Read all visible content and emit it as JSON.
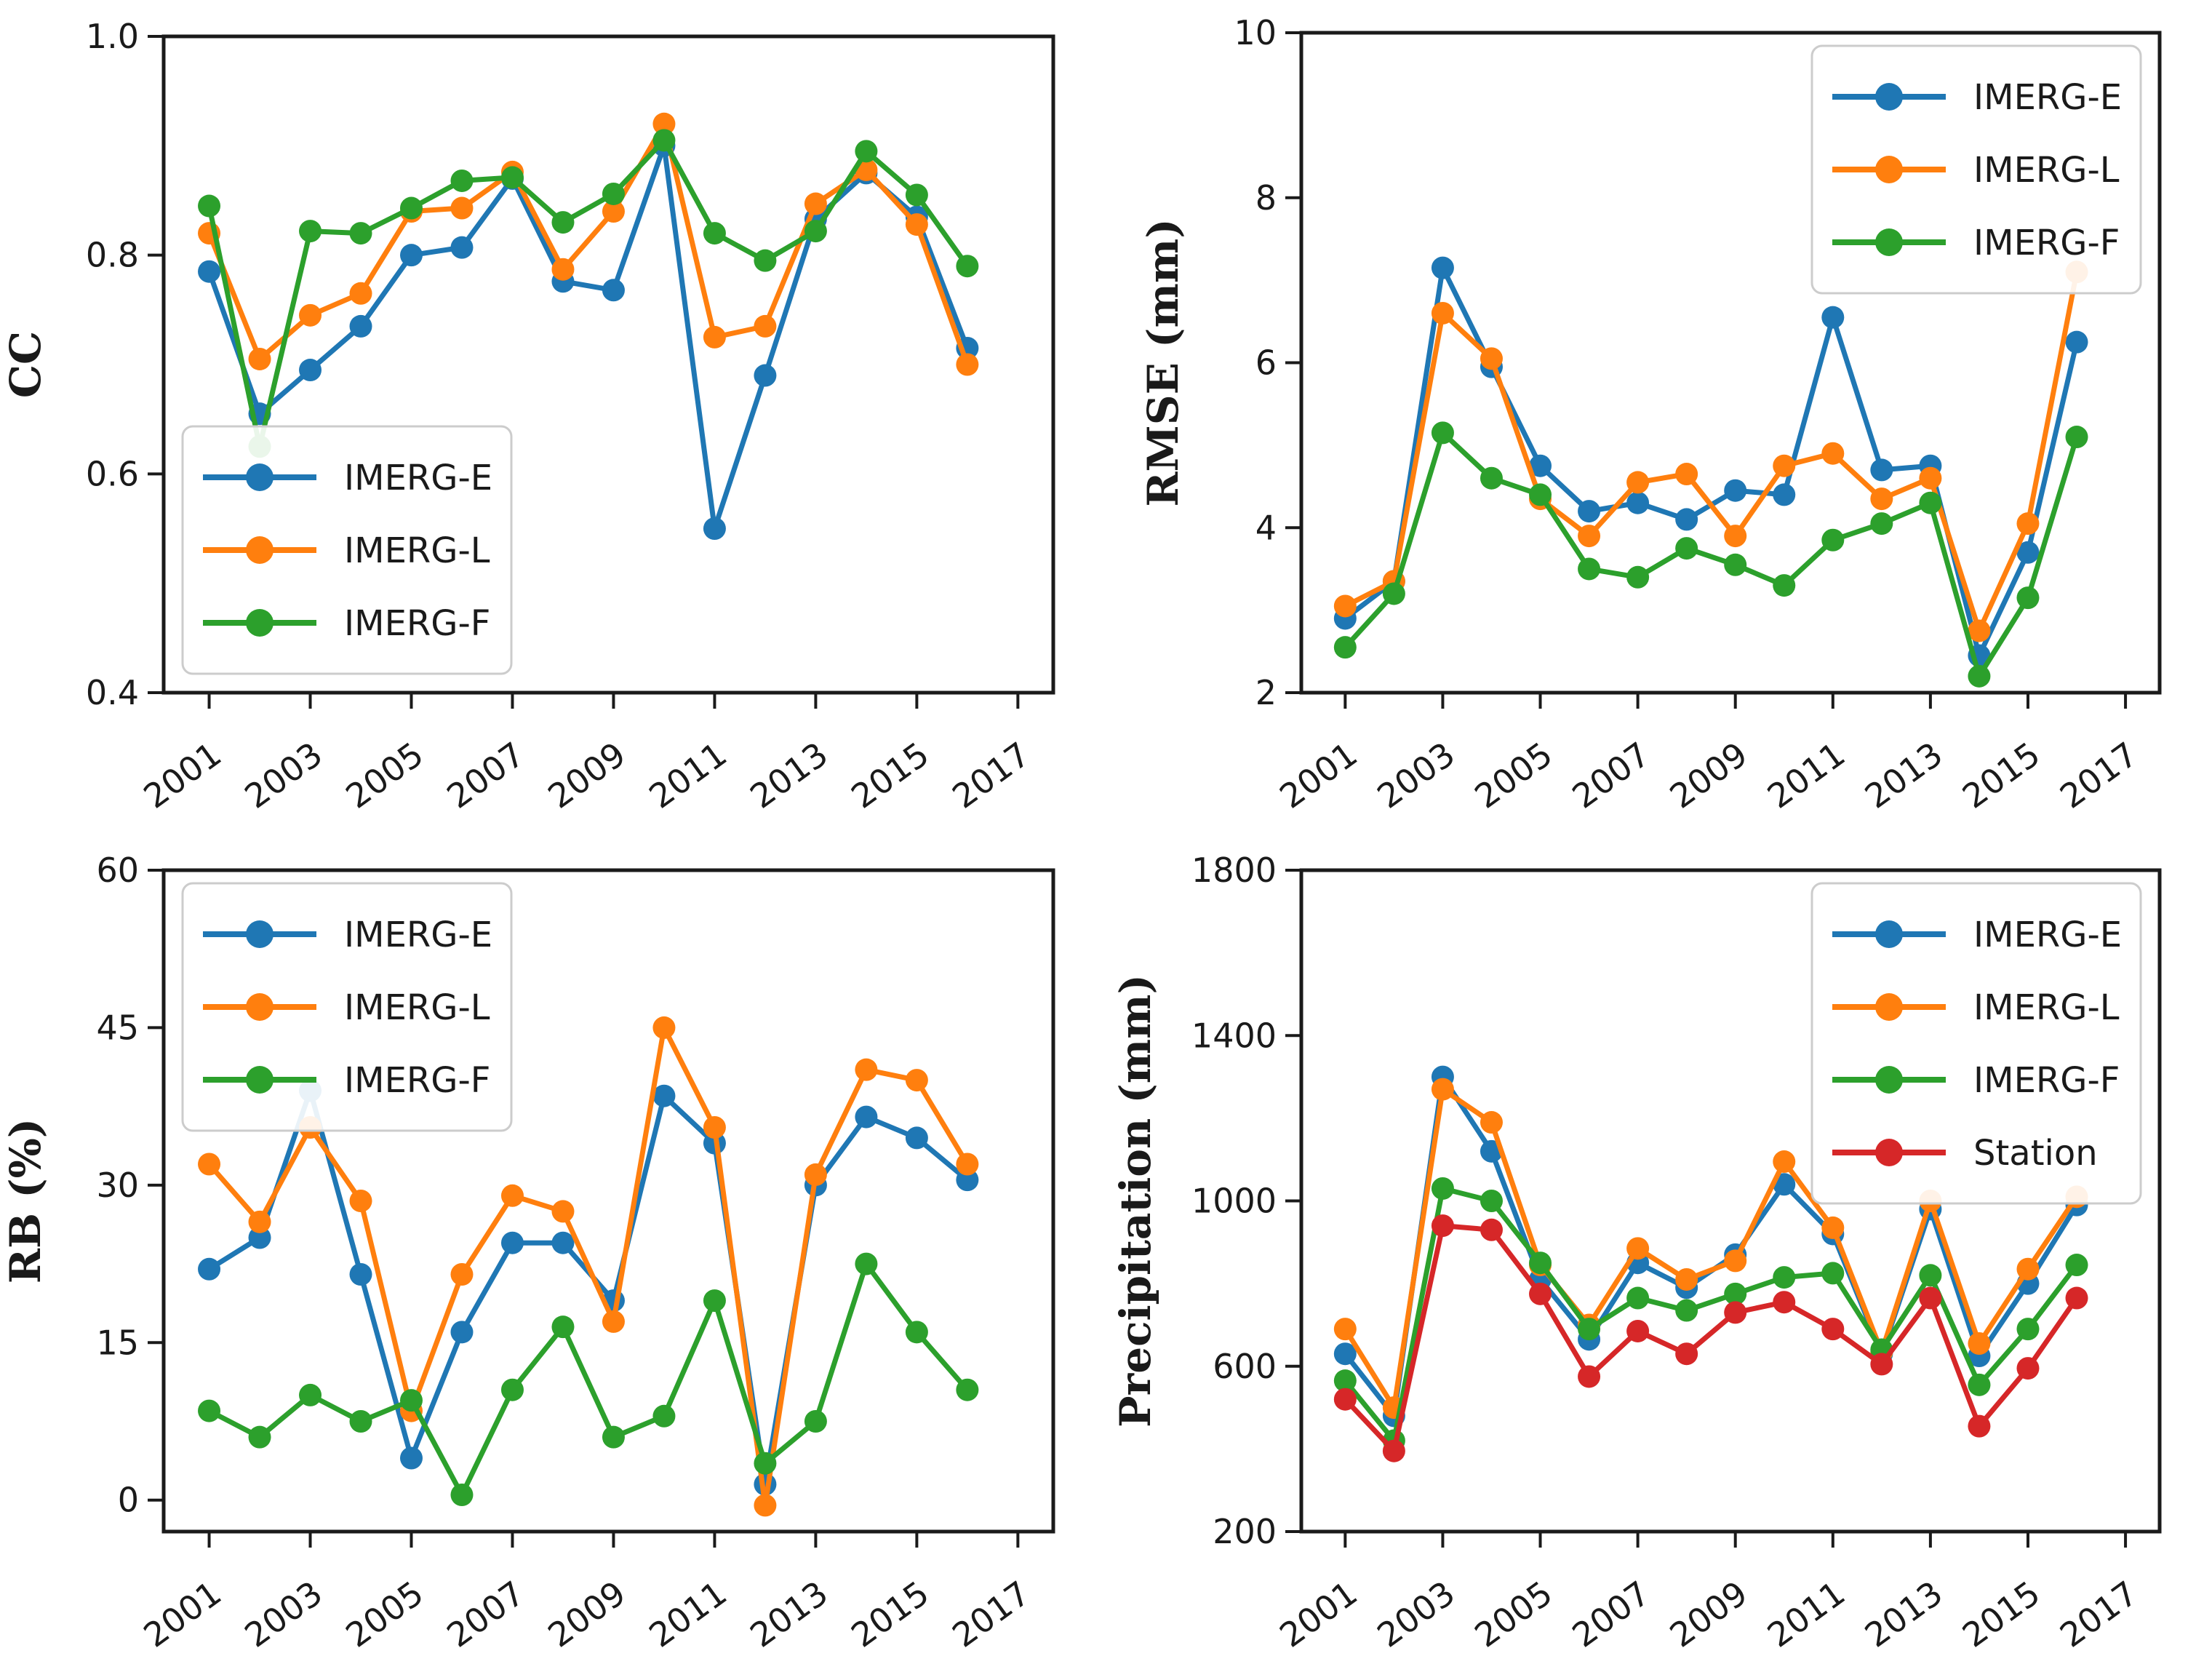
{
  "figure": {
    "background": "#ffffff",
    "axis_color": "#1a1a1a",
    "legend_border_color": "#cccccc",
    "legend_fill": "#ffffff"
  },
  "colors": {
    "IMERG-E": "#1f77b4",
    "IMERG-L": "#ff7f0e",
    "IMERG-F": "#2ca02c",
    "Station": "#d62728"
  },
  "chart_data": [
    {
      "id": "cc",
      "type": "line",
      "title": "",
      "xlabel": "",
      "ylabel": "CC",
      "x": [
        2001,
        2002,
        2003,
        2004,
        2005,
        2006,
        2007,
        2008,
        2009,
        2010,
        2011,
        2012,
        2013,
        2014,
        2015,
        2016
      ],
      "xlim": [
        2000.1,
        2017.7
      ],
      "xticks": [
        2001,
        2003,
        2005,
        2007,
        2009,
        2011,
        2013,
        2015,
        2017
      ],
      "xtick_labels": [
        "2001",
        "2003",
        "2005",
        "2007",
        "2009",
        "2011",
        "2013",
        "2015",
        "2017"
      ],
      "ylim": [
        0.4,
        1.0
      ],
      "yticks": [
        0.4,
        0.6,
        0.8,
        1.0
      ],
      "ytick_labels": [
        "0.4",
        "0.6",
        "0.8",
        "1.0"
      ],
      "grid": false,
      "legend_position": "lower-left",
      "series": [
        {
          "name": "IMERG-E",
          "color": "#1f77b4",
          "values": [
            0.785,
            0.655,
            0.695,
            0.735,
            0.8,
            0.807,
            0.87,
            0.776,
            0.768,
            0.9,
            0.55,
            0.69,
            0.833,
            0.875,
            0.835,
            0.715
          ]
        },
        {
          "name": "IMERG-L",
          "color": "#ff7f0e",
          "values": [
            0.82,
            0.705,
            0.745,
            0.765,
            0.84,
            0.843,
            0.876,
            0.787,
            0.84,
            0.92,
            0.725,
            0.735,
            0.847,
            0.878,
            0.828,
            0.7
          ]
        },
        {
          "name": "IMERG-F",
          "color": "#2ca02c",
          "values": [
            0.845,
            0.625,
            0.822,
            0.82,
            0.843,
            0.868,
            0.871,
            0.83,
            0.856,
            0.905,
            0.82,
            0.795,
            0.822,
            0.895,
            0.855,
            0.79
          ]
        }
      ]
    },
    {
      "id": "rmse",
      "type": "line",
      "title": "",
      "xlabel": "",
      "ylabel": "RMSE (mm)",
      "x": [
        2001,
        2002,
        2003,
        2004,
        2005,
        2006,
        2007,
        2008,
        2009,
        2010,
        2011,
        2012,
        2013,
        2014,
        2015,
        2016
      ],
      "xlim": [
        2000.1,
        2017.7
      ],
      "xticks": [
        2001,
        2003,
        2005,
        2007,
        2009,
        2011,
        2013,
        2015,
        2017
      ],
      "xtick_labels": [
        "2001",
        "2003",
        "2005",
        "2007",
        "2009",
        "2011",
        "2013",
        "2015",
        "2017"
      ],
      "ylim": [
        2,
        10
      ],
      "yticks": [
        2,
        4,
        6,
        8,
        10
      ],
      "ytick_labels": [
        "2",
        "4",
        "6",
        "8",
        "10"
      ],
      "grid": false,
      "legend_position": "upper-right",
      "series": [
        {
          "name": "IMERG-E",
          "color": "#1f77b4",
          "values": [
            2.9,
            3.35,
            7.15,
            5.95,
            4.75,
            4.2,
            4.3,
            4.1,
            4.45,
            4.4,
            6.55,
            4.7,
            4.75,
            2.45,
            3.7,
            6.25
          ]
        },
        {
          "name": "IMERG-L",
          "color": "#ff7f0e",
          "values": [
            3.05,
            3.35,
            6.6,
            6.05,
            4.35,
            3.9,
            4.55,
            4.65,
            3.9,
            4.75,
            4.9,
            4.35,
            4.6,
            2.75,
            4.05,
            7.1
          ]
        },
        {
          "name": "IMERG-F",
          "color": "#2ca02c",
          "values": [
            2.55,
            3.2,
            5.15,
            4.6,
            4.4,
            3.5,
            3.4,
            3.75,
            3.55,
            3.3,
            3.85,
            4.05,
            4.3,
            2.2,
            3.15,
            5.1
          ]
        }
      ]
    },
    {
      "id": "rb",
      "type": "line",
      "title": "",
      "xlabel": "",
      "ylabel": "RB (%)",
      "x": [
        2001,
        2002,
        2003,
        2004,
        2005,
        2006,
        2007,
        2008,
        2009,
        2010,
        2011,
        2012,
        2013,
        2014,
        2015,
        2016
      ],
      "xlim": [
        2000.1,
        2017.7
      ],
      "xticks": [
        2001,
        2003,
        2005,
        2007,
        2009,
        2011,
        2013,
        2015,
        2017
      ],
      "xtick_labels": [
        "2001",
        "2003",
        "2005",
        "2007",
        "2009",
        "2011",
        "2013",
        "2015",
        "2017"
      ],
      "ylim": [
        -3,
        60
      ],
      "yticks": [
        0,
        15,
        30,
        45,
        60
      ],
      "ytick_labels": [
        "0",
        "15",
        "30",
        "45",
        "60"
      ],
      "grid": false,
      "legend_position": "upper-left",
      "series": [
        {
          "name": "IMERG-E",
          "color": "#1f77b4",
          "values": [
            22,
            25,
            39,
            21.5,
            4,
            16,
            24.5,
            24.5,
            19,
            38.5,
            34,
            1.5,
            30,
            36.5,
            34.5,
            30.5
          ]
        },
        {
          "name": "IMERG-L",
          "color": "#ff7f0e",
          "values": [
            32,
            26.5,
            35.5,
            28.5,
            8.5,
            21.5,
            29,
            27.5,
            17,
            45,
            35.5,
            -0.5,
            31,
            41,
            40,
            32
          ]
        },
        {
          "name": "IMERG-F",
          "color": "#2ca02c",
          "values": [
            8.5,
            6,
            10,
            7.5,
            9.5,
            0.5,
            10.5,
            16.5,
            6,
            8,
            19,
            3.5,
            7.5,
            22.5,
            16,
            10.5
          ]
        }
      ]
    },
    {
      "id": "precipitation",
      "type": "line",
      "title": "",
      "xlabel": "",
      "ylabel": "Precipitation (mm)",
      "x": [
        2001,
        2002,
        2003,
        2004,
        2005,
        2006,
        2007,
        2008,
        2009,
        2010,
        2011,
        2012,
        2013,
        2014,
        2015,
        2016
      ],
      "xlim": [
        2000.1,
        2017.7
      ],
      "xticks": [
        2001,
        2003,
        2005,
        2007,
        2009,
        2011,
        2013,
        2015,
        2017
      ],
      "xtick_labels": [
        "2001",
        "2003",
        "2005",
        "2007",
        "2009",
        "2011",
        "2013",
        "2015",
        "2017"
      ],
      "ylim": [
        200,
        1800
      ],
      "yticks": [
        200,
        600,
        1000,
        1400,
        1800
      ],
      "ytick_labels": [
        "200",
        "600",
        "1000",
        "1400",
        "1800"
      ],
      "grid": false,
      "legend_position": "upper-right",
      "series": [
        {
          "name": "IMERG-E",
          "color": "#1f77b4",
          "values": [
            630,
            480,
            1300,
            1120,
            810,
            665,
            850,
            790,
            870,
            1040,
            920,
            630,
            980,
            625,
            800,
            990
          ]
        },
        {
          "name": "IMERG-L",
          "color": "#ff7f0e",
          "values": [
            690,
            500,
            1270,
            1190,
            845,
            700,
            885,
            810,
            855,
            1095,
            935,
            635,
            1000,
            655,
            835,
            1010
          ]
        },
        {
          "name": "IMERG-F",
          "color": "#2ca02c",
          "values": [
            565,
            420,
            1030,
            1000,
            850,
            690,
            765,
            735,
            775,
            815,
            825,
            640,
            820,
            555,
            690,
            845
          ]
        },
        {
          "name": "Station",
          "color": "#d62728",
          "values": [
            520,
            395,
            940,
            930,
            775,
            575,
            685,
            630,
            730,
            755,
            690,
            605,
            765,
            455,
            595,
            765
          ]
        }
      ]
    }
  ]
}
